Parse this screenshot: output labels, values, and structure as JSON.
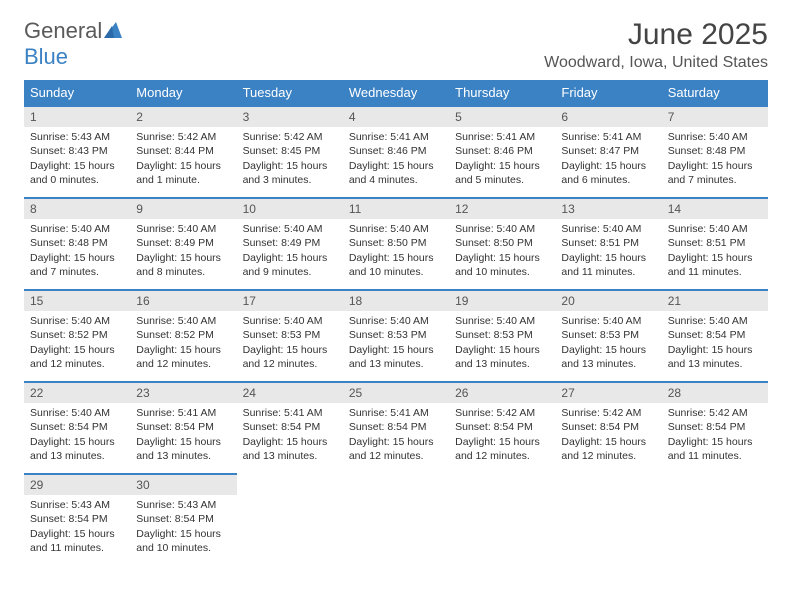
{
  "brand": {
    "part1": "General",
    "part2": "Blue"
  },
  "title": "June 2025",
  "location": "Woodward, Iowa, United States",
  "colors": {
    "header_bg": "#3b82c4",
    "header_text": "#ffffff",
    "daynum_bg": "#e8e8e8",
    "daynum_border": "#3b82c4",
    "body_text": "#333333",
    "title_text": "#444444"
  },
  "weekdays": [
    "Sunday",
    "Monday",
    "Tuesday",
    "Wednesday",
    "Thursday",
    "Friday",
    "Saturday"
  ],
  "weeks": [
    [
      {
        "n": "1",
        "sr": "Sunrise: 5:43 AM",
        "ss": "Sunset: 8:43 PM",
        "d1": "Daylight: 15 hours",
        "d2": "and 0 minutes."
      },
      {
        "n": "2",
        "sr": "Sunrise: 5:42 AM",
        "ss": "Sunset: 8:44 PM",
        "d1": "Daylight: 15 hours",
        "d2": "and 1 minute."
      },
      {
        "n": "3",
        "sr": "Sunrise: 5:42 AM",
        "ss": "Sunset: 8:45 PM",
        "d1": "Daylight: 15 hours",
        "d2": "and 3 minutes."
      },
      {
        "n": "4",
        "sr": "Sunrise: 5:41 AM",
        "ss": "Sunset: 8:46 PM",
        "d1": "Daylight: 15 hours",
        "d2": "and 4 minutes."
      },
      {
        "n": "5",
        "sr": "Sunrise: 5:41 AM",
        "ss": "Sunset: 8:46 PM",
        "d1": "Daylight: 15 hours",
        "d2": "and 5 minutes."
      },
      {
        "n": "6",
        "sr": "Sunrise: 5:41 AM",
        "ss": "Sunset: 8:47 PM",
        "d1": "Daylight: 15 hours",
        "d2": "and 6 minutes."
      },
      {
        "n": "7",
        "sr": "Sunrise: 5:40 AM",
        "ss": "Sunset: 8:48 PM",
        "d1": "Daylight: 15 hours",
        "d2": "and 7 minutes."
      }
    ],
    [
      {
        "n": "8",
        "sr": "Sunrise: 5:40 AM",
        "ss": "Sunset: 8:48 PM",
        "d1": "Daylight: 15 hours",
        "d2": "and 7 minutes."
      },
      {
        "n": "9",
        "sr": "Sunrise: 5:40 AM",
        "ss": "Sunset: 8:49 PM",
        "d1": "Daylight: 15 hours",
        "d2": "and 8 minutes."
      },
      {
        "n": "10",
        "sr": "Sunrise: 5:40 AM",
        "ss": "Sunset: 8:49 PM",
        "d1": "Daylight: 15 hours",
        "d2": "and 9 minutes."
      },
      {
        "n": "11",
        "sr": "Sunrise: 5:40 AM",
        "ss": "Sunset: 8:50 PM",
        "d1": "Daylight: 15 hours",
        "d2": "and 10 minutes."
      },
      {
        "n": "12",
        "sr": "Sunrise: 5:40 AM",
        "ss": "Sunset: 8:50 PM",
        "d1": "Daylight: 15 hours",
        "d2": "and 10 minutes."
      },
      {
        "n": "13",
        "sr": "Sunrise: 5:40 AM",
        "ss": "Sunset: 8:51 PM",
        "d1": "Daylight: 15 hours",
        "d2": "and 11 minutes."
      },
      {
        "n": "14",
        "sr": "Sunrise: 5:40 AM",
        "ss": "Sunset: 8:51 PM",
        "d1": "Daylight: 15 hours",
        "d2": "and 11 minutes."
      }
    ],
    [
      {
        "n": "15",
        "sr": "Sunrise: 5:40 AM",
        "ss": "Sunset: 8:52 PM",
        "d1": "Daylight: 15 hours",
        "d2": "and 12 minutes."
      },
      {
        "n": "16",
        "sr": "Sunrise: 5:40 AM",
        "ss": "Sunset: 8:52 PM",
        "d1": "Daylight: 15 hours",
        "d2": "and 12 minutes."
      },
      {
        "n": "17",
        "sr": "Sunrise: 5:40 AM",
        "ss": "Sunset: 8:53 PM",
        "d1": "Daylight: 15 hours",
        "d2": "and 12 minutes."
      },
      {
        "n": "18",
        "sr": "Sunrise: 5:40 AM",
        "ss": "Sunset: 8:53 PM",
        "d1": "Daylight: 15 hours",
        "d2": "and 13 minutes."
      },
      {
        "n": "19",
        "sr": "Sunrise: 5:40 AM",
        "ss": "Sunset: 8:53 PM",
        "d1": "Daylight: 15 hours",
        "d2": "and 13 minutes."
      },
      {
        "n": "20",
        "sr": "Sunrise: 5:40 AM",
        "ss": "Sunset: 8:53 PM",
        "d1": "Daylight: 15 hours",
        "d2": "and 13 minutes."
      },
      {
        "n": "21",
        "sr": "Sunrise: 5:40 AM",
        "ss": "Sunset: 8:54 PM",
        "d1": "Daylight: 15 hours",
        "d2": "and 13 minutes."
      }
    ],
    [
      {
        "n": "22",
        "sr": "Sunrise: 5:40 AM",
        "ss": "Sunset: 8:54 PM",
        "d1": "Daylight: 15 hours",
        "d2": "and 13 minutes."
      },
      {
        "n": "23",
        "sr": "Sunrise: 5:41 AM",
        "ss": "Sunset: 8:54 PM",
        "d1": "Daylight: 15 hours",
        "d2": "and 13 minutes."
      },
      {
        "n": "24",
        "sr": "Sunrise: 5:41 AM",
        "ss": "Sunset: 8:54 PM",
        "d1": "Daylight: 15 hours",
        "d2": "and 13 minutes."
      },
      {
        "n": "25",
        "sr": "Sunrise: 5:41 AM",
        "ss": "Sunset: 8:54 PM",
        "d1": "Daylight: 15 hours",
        "d2": "and 12 minutes."
      },
      {
        "n": "26",
        "sr": "Sunrise: 5:42 AM",
        "ss": "Sunset: 8:54 PM",
        "d1": "Daylight: 15 hours",
        "d2": "and 12 minutes."
      },
      {
        "n": "27",
        "sr": "Sunrise: 5:42 AM",
        "ss": "Sunset: 8:54 PM",
        "d1": "Daylight: 15 hours",
        "d2": "and 12 minutes."
      },
      {
        "n": "28",
        "sr": "Sunrise: 5:42 AM",
        "ss": "Sunset: 8:54 PM",
        "d1": "Daylight: 15 hours",
        "d2": "and 11 minutes."
      }
    ],
    [
      {
        "n": "29",
        "sr": "Sunrise: 5:43 AM",
        "ss": "Sunset: 8:54 PM",
        "d1": "Daylight: 15 hours",
        "d2": "and 11 minutes."
      },
      {
        "n": "30",
        "sr": "Sunrise: 5:43 AM",
        "ss": "Sunset: 8:54 PM",
        "d1": "Daylight: 15 hours",
        "d2": "and 10 minutes."
      },
      null,
      null,
      null,
      null,
      null
    ]
  ]
}
